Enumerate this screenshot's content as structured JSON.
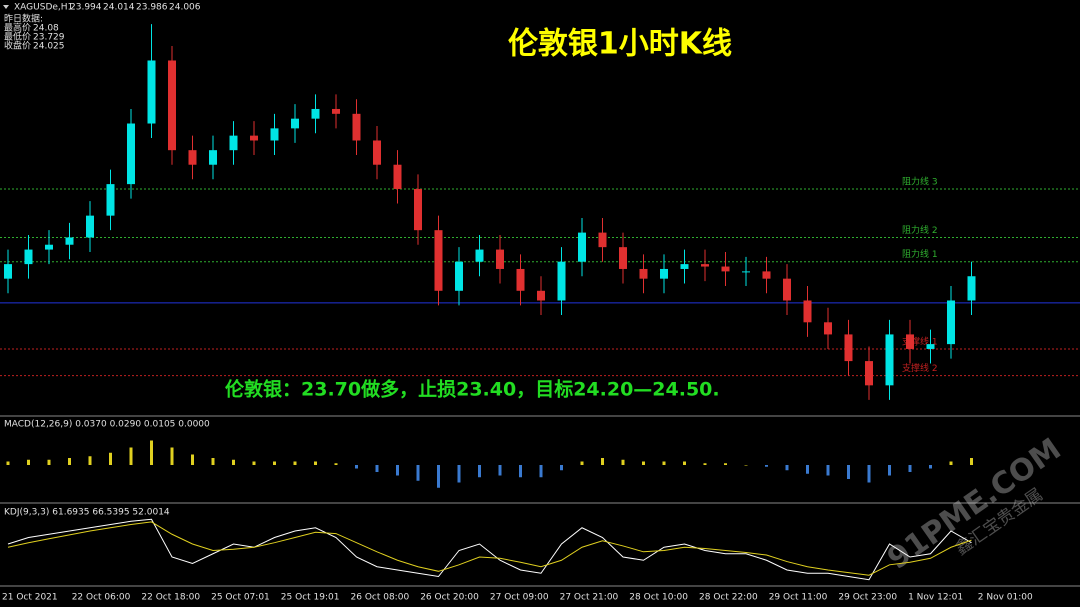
{
  "header": {
    "symbol": "XAGUSDe,H1",
    "open": "23.994",
    "high": "24.014",
    "low": "23.986",
    "close": "24.006",
    "yesterday_title": "昨日数据:",
    "yesterday": [
      [
        "最高价",
        "24.08"
      ],
      [
        "最低价",
        "23.729"
      ],
      [
        "收盘价",
        "24.025"
      ]
    ]
  },
  "title": "伦敦银1小时K线",
  "annotation": "伦敦银：23.70做多，止损23.40，目标24.20—24.50.",
  "ylim": [
    23.45,
    25.1
  ],
  "levels": [
    {
      "label": "阻力线 3",
      "value": 24.37,
      "color": "#2fae2f"
    },
    {
      "label": "阻力线 2",
      "value": 24.17,
      "color": "#2fae2f"
    },
    {
      "label": "阻力线 1",
      "value": 24.07,
      "color": "#2fae2f"
    },
    {
      "label": "支撑线 1",
      "value": 23.71,
      "color": "#c02020"
    },
    {
      "label": "支撑线 2",
      "value": 23.6,
      "color": "#c02020"
    }
  ],
  "hline": 23.9,
  "candles": {
    "open": [
      24.0,
      24.06,
      24.12,
      24.14,
      24.17,
      24.26,
      24.39,
      24.64,
      24.9,
      24.53,
      24.47,
      24.53,
      24.59,
      24.57,
      24.62,
      24.66,
      24.7,
      24.68,
      24.57,
      24.47,
      24.37,
      24.2,
      23.95,
      24.07,
      24.12,
      24.04,
      23.95,
      23.91,
      24.07,
      24.19,
      24.13,
      24.04,
      24.0,
      24.04,
      24.06,
      24.05,
      24.03,
      24.03,
      24.0,
      23.91,
      23.82,
      23.77,
      23.66,
      23.56,
      23.77,
      23.71,
      23.73,
      23.91
    ],
    "high": [
      24.12,
      24.18,
      24.2,
      24.23,
      24.32,
      24.45,
      24.7,
      25.05,
      24.96,
      24.59,
      24.59,
      24.65,
      24.65,
      24.68,
      24.72,
      24.76,
      24.76,
      24.74,
      24.63,
      24.53,
      24.43,
      24.26,
      24.13,
      24.18,
      24.18,
      24.1,
      24.01,
      24.13,
      24.25,
      24.25,
      24.19,
      24.1,
      24.1,
      24.12,
      24.12,
      24.11,
      24.09,
      24.09,
      24.06,
      23.97,
      23.88,
      23.83,
      23.72,
      23.83,
      23.83,
      23.79,
      23.97,
      24.07
    ],
    "low": [
      23.94,
      24.0,
      24.06,
      24.08,
      24.11,
      24.2,
      24.33,
      24.58,
      24.47,
      24.41,
      24.41,
      24.47,
      24.51,
      24.51,
      24.56,
      24.6,
      24.62,
      24.51,
      24.41,
      24.31,
      24.14,
      23.89,
      23.89,
      24.01,
      23.98,
      23.89,
      23.85,
      23.85,
      24.01,
      24.07,
      23.98,
      23.94,
      23.94,
      23.98,
      23.99,
      23.97,
      23.97,
      23.94,
      23.85,
      23.76,
      23.71,
      23.6,
      23.5,
      23.5,
      23.65,
      23.65,
      23.67,
      23.85
    ],
    "close": [
      24.06,
      24.12,
      24.14,
      24.17,
      24.26,
      24.39,
      24.64,
      24.9,
      24.53,
      24.47,
      24.53,
      24.59,
      24.57,
      24.62,
      24.66,
      24.7,
      24.68,
      24.57,
      24.47,
      24.37,
      24.2,
      23.95,
      24.07,
      24.12,
      24.04,
      23.95,
      23.91,
      24.07,
      24.19,
      24.13,
      24.04,
      24.0,
      24.04,
      24.06,
      24.05,
      24.03,
      24.03,
      24.0,
      23.91,
      23.82,
      23.77,
      23.66,
      23.56,
      23.77,
      23.71,
      23.73,
      23.91,
      24.01
    ]
  },
  "macd": {
    "label": "MACD(12,26,9) 0.0370 0.0290 0.0105 0.0000",
    "ylim": [
      -0.2,
      0.2
    ],
    "hist": [
      0.02,
      0.03,
      0.03,
      0.04,
      0.05,
      0.07,
      0.1,
      0.14,
      0.1,
      0.06,
      0.04,
      0.03,
      0.02,
      0.02,
      0.02,
      0.02,
      0.01,
      -0.02,
      -0.04,
      -0.06,
      -0.09,
      -0.13,
      -0.1,
      -0.07,
      -0.06,
      -0.07,
      -0.07,
      -0.03,
      0.02,
      0.04,
      0.03,
      0.02,
      0.02,
      0.02,
      0.01,
      0.01,
      0.0,
      -0.01,
      -0.03,
      -0.05,
      -0.06,
      -0.08,
      -0.1,
      -0.06,
      -0.04,
      -0.02,
      0.02,
      0.04
    ]
  },
  "kdj": {
    "label": "KDJ(9,3,3) 61.6935 66.5395 52.0014",
    "ylim": [
      0,
      100
    ],
    "k": [
      60,
      70,
      75,
      80,
      85,
      90,
      95,
      98,
      40,
      30,
      45,
      60,
      55,
      70,
      80,
      85,
      70,
      40,
      25,
      20,
      15,
      10,
      50,
      60,
      35,
      20,
      15,
      60,
      85,
      70,
      40,
      35,
      55,
      60,
      50,
      45,
      45,
      35,
      20,
      15,
      15,
      10,
      5,
      60,
      40,
      45,
      80,
      62
    ],
    "d": [
      55,
      62,
      68,
      74,
      80,
      85,
      90,
      94,
      75,
      60,
      50,
      52,
      55,
      62,
      70,
      78,
      76,
      62,
      48,
      35,
      25,
      18,
      28,
      40,
      38,
      32,
      25,
      35,
      55,
      65,
      57,
      48,
      50,
      55,
      53,
      50,
      47,
      43,
      33,
      25,
      20,
      16,
      12,
      28,
      32,
      38,
      55,
      66
    ]
  },
  "xaxis_labels": [
    "21 Oct 2021",
    "22 Oct 06:00",
    "22 Oct 18:00",
    "25 Oct 07:01",
    "25 Oct 19:01",
    "26 Oct 08:00",
    "26 Oct 20:00",
    "27 Oct 09:00",
    "27 Oct 21:00",
    "28 Oct 10:00",
    "28 Oct 22:00",
    "29 Oct 11:00",
    "29 Oct 23:00",
    "1 Nov 12:01",
    "2 Nov 01:00"
  ],
  "watermark": {
    "site": "91PME.COM",
    "brand": "鑫汇宝贵金属"
  }
}
